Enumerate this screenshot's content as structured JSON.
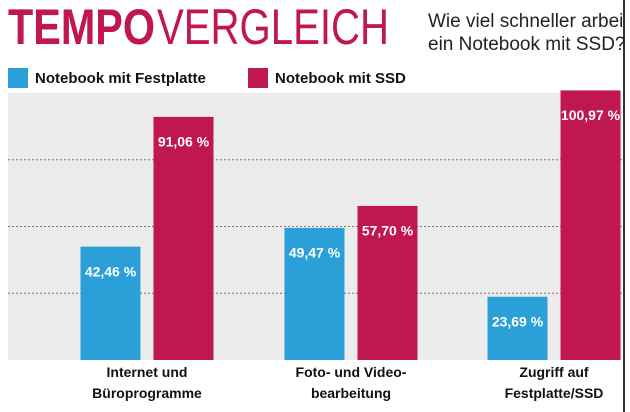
{
  "chart_data": {
    "type": "bar",
    "title_parts": [
      "TEMPO",
      "VERGLEICH"
    ],
    "subtitle_lines": [
      "Wie viel schneller arbei",
      "ein Notebook mit SSD?"
    ],
    "categories": [
      "Internet und\nBüroprogramme",
      "Foto- und Video-\nbearbeitung",
      "Zugriff auf\nFestplatte/SSD"
    ],
    "series": [
      {
        "name": "Notebook mit Festplatte",
        "color": "#2a9fd8",
        "values": [
          42.46,
          49.47,
          23.69
        ],
        "value_labels": [
          "42,46 %",
          "49,47 %",
          "23,69 %"
        ]
      },
      {
        "name": "Notebook mit SSD",
        "color": "#c0174f",
        "values": [
          91.06,
          57.7,
          100.97
        ],
        "value_labels": [
          "91,06 %",
          "57,70 %",
          "100,97 %"
        ]
      }
    ],
    "ylim": [
      0,
      100
    ],
    "yticks": [
      25,
      50,
      75
    ],
    "grid": true
  }
}
